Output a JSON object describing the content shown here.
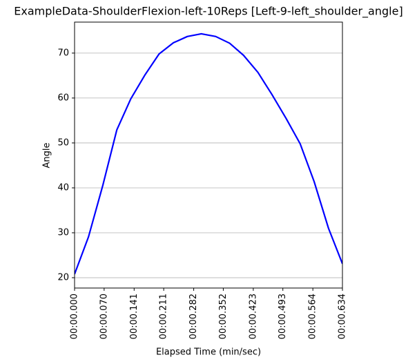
{
  "chart_data": {
    "type": "line",
    "title": "ExampleData-ShoulderFlexion-left-10Reps [Left-9-left_shoulder_angle]",
    "x_label": "Elapsed Time (min/sec)",
    "y_label": "Angle",
    "x": [
      0,
      0.033,
      0.067,
      0.1,
      0.133,
      0.167,
      0.2,
      0.234,
      0.267,
      0.3,
      0.334,
      0.367,
      0.4,
      0.434,
      0.467,
      0.501,
      0.534,
      0.567,
      0.601,
      0.634
    ],
    "series": [
      {
        "name": "left_shoulder_angle",
        "color": "#0000ff",
        "values": [
          20.8,
          29.1,
          40.6,
          52.9,
          59.8,
          65.2,
          69.8,
          72.3,
          73.7,
          74.3,
          73.7,
          72.2,
          69.5,
          65.7,
          60.8,
          55.4,
          49.8,
          41.4,
          31.0,
          23.1
        ]
      }
    ],
    "xlim": [
      0,
      0.634
    ],
    "ylim": [
      17.7,
      76.9
    ],
    "xticks": [
      {
        "value": 0,
        "label": "00:00.000"
      },
      {
        "value": 0.07,
        "label": "00:00.070"
      },
      {
        "value": 0.141,
        "label": "00:00.141"
      },
      {
        "value": 0.211,
        "label": "00:00.211"
      },
      {
        "value": 0.282,
        "label": "00:00.282"
      },
      {
        "value": 0.352,
        "label": "00:00.352"
      },
      {
        "value": 0.423,
        "label": "00:00.423"
      },
      {
        "value": 0.493,
        "label": "00:00.493"
      },
      {
        "value": 0.564,
        "label": "00:00.564"
      },
      {
        "value": 0.634,
        "label": "00:00.634"
      }
    ],
    "yticks": [
      20,
      30,
      40,
      50,
      60,
      70
    ],
    "grid": "y"
  }
}
